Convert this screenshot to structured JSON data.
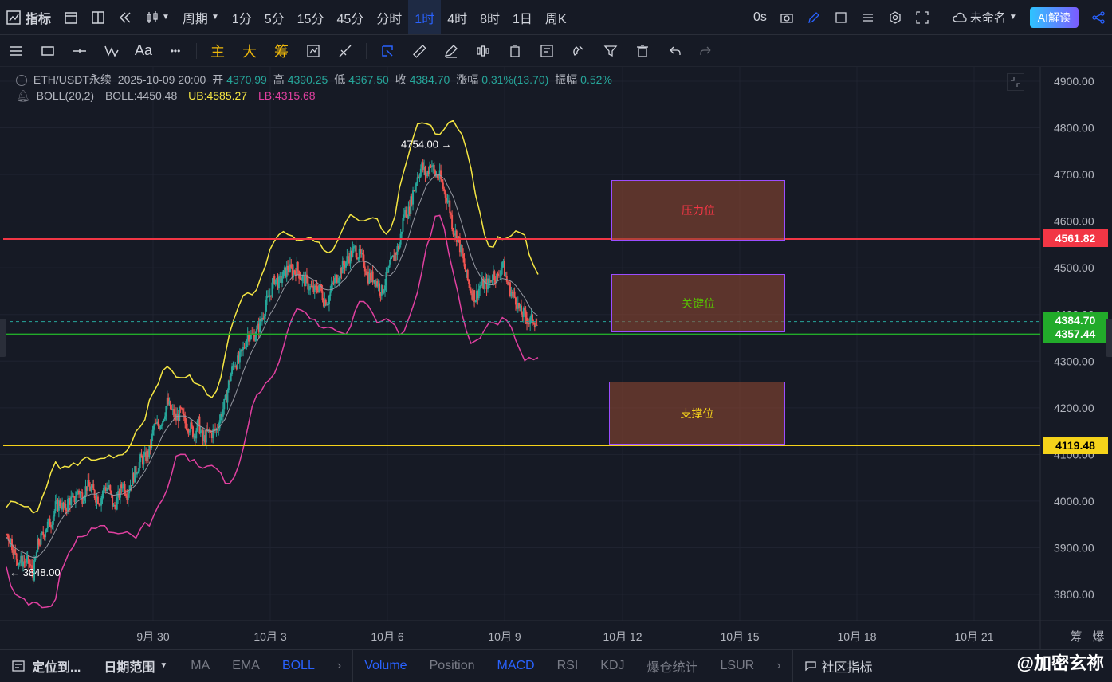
{
  "topbar": {
    "indicator_label": "指标",
    "period_label": "周期",
    "intervals": [
      "1分",
      "5分",
      "15分",
      "45分",
      "分时",
      "1时",
      "4时",
      "8时",
      "1日",
      "周K"
    ],
    "active_interval": "1时",
    "countdown": "0s",
    "layout_name": "未命名",
    "ai_button": "AI解读"
  },
  "toolbar2": {
    "font_label": "Aa",
    "more_label": "•••",
    "main_label": "主",
    "big_label": "大",
    "chip_label": "筹"
  },
  "symbol_info": {
    "pair": "ETH/USDT永续",
    "datetime": "2025-10-09 20:00",
    "open_label": "开",
    "open": "4370.99",
    "high_label": "高",
    "high": "4390.25",
    "low_label": "低",
    "low": "4367.50",
    "close_label": "收",
    "close": "4384.70",
    "change_label": "涨幅",
    "change": "0.31%(13.70)",
    "amplitude_label": "振幅",
    "amplitude": "0.52%"
  },
  "boll_info": {
    "name": "BOLL(20,2)",
    "mid": "BOLL:4450.48",
    "ub": "UB:4585.27",
    "lb": "LB:4315.68"
  },
  "colors": {
    "ub": "#f5e642",
    "lb": "#e040a0",
    "mid": "#9598a1",
    "up": "#26a69a",
    "down": "#ef5350",
    "resistance": "#f23645",
    "key": "#22ab2a",
    "support": "#f5d31a"
  },
  "axis": {
    "price_ticks": [
      "4900.00",
      "4800.00",
      "4700.00",
      "4600.00",
      "4500.00",
      "4400.00",
      "4300.00",
      "4200.00",
      "4100.00",
      "4000.00",
      "3900.00",
      "3800.00"
    ],
    "date_ticks": [
      "9月 30",
      "10月 3",
      "10月 6",
      "10月 9",
      "10月 12",
      "10月 15",
      "10月 18",
      "10月 21"
    ],
    "right_labels": [
      "筹",
      "爆"
    ]
  },
  "annotations": {
    "high_marker": "4754.00",
    "low_marker": "3848.00"
  },
  "price_tags": {
    "resistance": "4561.82",
    "current": "4384.70",
    "key": "4357.44",
    "support": "4119.48"
  },
  "zones": {
    "resistance": "压力位",
    "key": "关键位",
    "support": "支撑位"
  },
  "bottombar": {
    "locate": "定位到...",
    "date_range": "日期范围",
    "indicators": [
      "MA",
      "EMA",
      "BOLL"
    ],
    "sub_indicators": [
      "Volume",
      "Position",
      "MACD",
      "RSI",
      "KDJ",
      "爆仓统计",
      "LSUR"
    ],
    "community": "社区指标"
  },
  "watermark": "@加密玄祢",
  "chart_data": {
    "type": "candlestick",
    "price_range": [
      3750,
      4950
    ],
    "close_anchors": [
      [
        0,
        3930
      ],
      [
        3,
        3880
      ],
      [
        6,
        3860
      ],
      [
        9,
        3950
      ],
      [
        12,
        3990
      ],
      [
        15,
        4010
      ],
      [
        18,
        4030
      ],
      [
        21,
        4020
      ],
      [
        24,
        4000
      ],
      [
        27,
        4030
      ],
      [
        30,
        4080
      ],
      [
        33,
        4140
      ],
      [
        36,
        4210
      ],
      [
        39,
        4180
      ],
      [
        42,
        4160
      ],
      [
        45,
        4130
      ],
      [
        48,
        4180
      ],
      [
        51,
        4290
      ],
      [
        54,
        4360
      ],
      [
        57,
        4390
      ],
      [
        60,
        4460
      ],
      [
        63,
        4500
      ],
      [
        66,
        4480
      ],
      [
        69,
        4460
      ],
      [
        72,
        4440
      ],
      [
        75,
        4480
      ],
      [
        78,
        4530
      ],
      [
        81,
        4500
      ],
      [
        84,
        4460
      ],
      [
        87,
        4520
      ],
      [
        90,
        4640
      ],
      [
        93,
        4720
      ],
      [
        96,
        4700
      ],
      [
        99,
        4640
      ],
      [
        102,
        4510
      ],
      [
        105,
        4450
      ],
      [
        108,
        4460
      ],
      [
        111,
        4500
      ],
      [
        114,
        4450
      ],
      [
        117,
        4370
      ],
      [
        119,
        4385
      ]
    ]
  }
}
